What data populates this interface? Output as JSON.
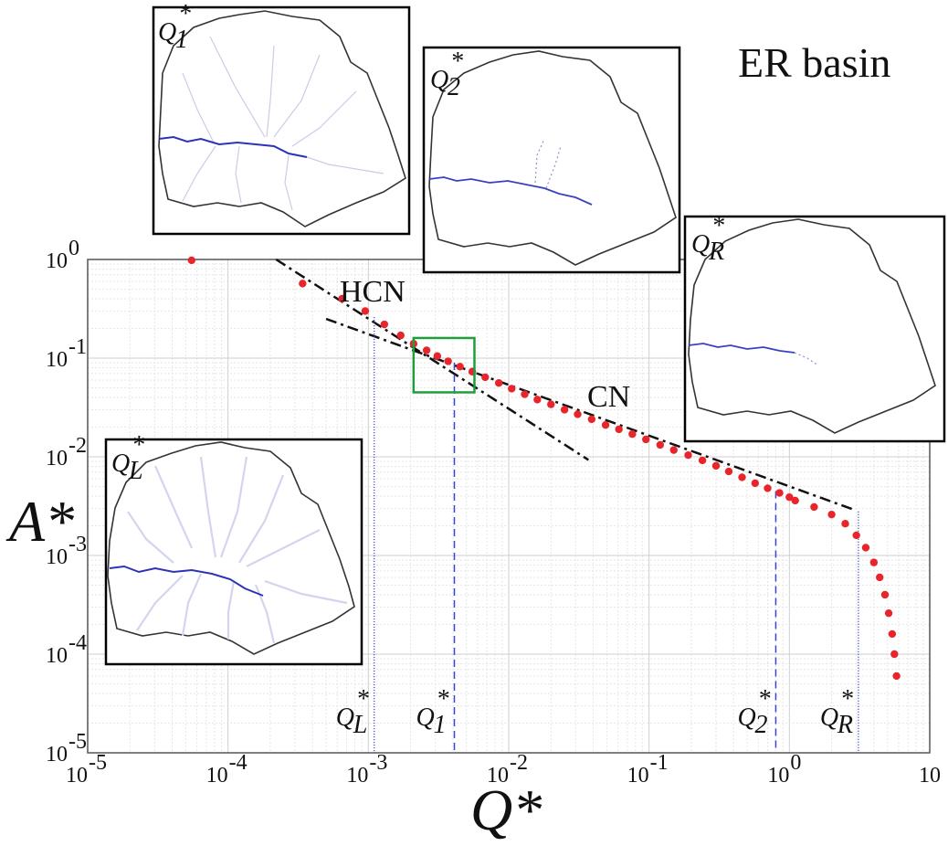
{
  "basin_label": "ER basin",
  "chart_data": {
    "type": "scatter",
    "title": "",
    "xlabel": "Q*",
    "ylabel": "A*",
    "xscale": "log",
    "yscale": "log",
    "xlim": [
      1e-05,
      10
    ],
    "ylim": [
      1e-05,
      1
    ],
    "grid": true,
    "x_tick_labels": [
      {
        "base": "10",
        "exp": "-5"
      },
      {
        "base": "10",
        "exp": "-4"
      },
      {
        "base": "10",
        "exp": "-3"
      },
      {
        "base": "10",
        "exp": "-2"
      },
      {
        "base": "10",
        "exp": "-1"
      },
      {
        "base": "10",
        "exp": "0"
      },
      {
        "base": "10",
        "exp": ""
      }
    ],
    "y_tick_labels": [
      {
        "base": "10",
        "exp": "0"
      },
      {
        "base": "10",
        "exp": "-1"
      },
      {
        "base": "10",
        "exp": "-2"
      },
      {
        "base": "10",
        "exp": "-3"
      },
      {
        "base": "10",
        "exp": "-4"
      },
      {
        "base": "10",
        "exp": "-5"
      }
    ],
    "marker_color": "#e8252b",
    "points": {
      "x": [
        5.5e-05,
        0.00034,
        0.00065,
        0.00095,
        0.0013,
        0.0017,
        0.0021,
        0.0026,
        0.0031,
        0.0037,
        0.0045,
        0.0055,
        0.0068,
        0.0085,
        0.0105,
        0.013,
        0.016,
        0.02,
        0.025,
        0.031,
        0.039,
        0.049,
        0.061,
        0.076,
        0.095,
        0.12,
        0.15,
        0.19,
        0.24,
        0.3,
        0.37,
        0.46,
        0.57,
        0.7,
        0.85,
        1.0,
        1.1,
        1.5,
        2.0,
        2.5,
        3.0,
        3.5,
        4.0,
        4.4,
        4.8,
        5.1,
        5.4,
        5.6,
        5.8
      ],
      "y": [
        0.98,
        0.57,
        0.4,
        0.3,
        0.22,
        0.17,
        0.14,
        0.12,
        0.105,
        0.093,
        0.082,
        0.073,
        0.064,
        0.056,
        0.049,
        0.043,
        0.038,
        0.034,
        0.03,
        0.027,
        0.024,
        0.021,
        0.019,
        0.017,
        0.015,
        0.0132,
        0.0117,
        0.0104,
        0.0092,
        0.0081,
        0.0071,
        0.0062,
        0.0054,
        0.0048,
        0.0043,
        0.0039,
        0.0036,
        0.0031,
        0.0026,
        0.0021,
        0.0016,
        0.0012,
        0.00085,
        0.0006,
        0.0004,
        0.00026,
        0.00016,
        0.0001,
        6e-05
      ]
    },
    "fit_lines": [
      {
        "name": "HCN",
        "x": [
          0.00022,
          0.037
        ],
        "y": [
          1.0,
          0.0093
        ]
      },
      {
        "name": "CN",
        "x": [
          0.0005,
          2.9
        ],
        "y": [
          0.25,
          0.0029
        ]
      }
    ],
    "thresholds": [
      {
        "label_base": "Q",
        "label_sub": "L",
        "label_sup": "*",
        "x": 0.0011,
        "y_top": 0.26,
        "dash": "1,2"
      },
      {
        "label_base": "Q",
        "label_sub": "1",
        "label_sup": "*",
        "x": 0.0041,
        "y_top": 0.09,
        "dash": "8,5"
      },
      {
        "label_base": "Q",
        "label_sub": "2",
        "label_sup": "*",
        "x": 0.8,
        "y_top": 0.0045,
        "dash": "8,5"
      },
      {
        "label_base": "Q",
        "label_sub": "R",
        "label_sup": "*",
        "x": 3.1,
        "y_top": 0.0028,
        "dash": "1,2"
      }
    ],
    "highlight_box": {
      "x": [
        0.0021,
        0.0057
      ],
      "y": [
        0.045,
        0.16
      ],
      "color": "#1e9e3c"
    },
    "inset_labels": [
      {
        "base": "Q",
        "sub": "1",
        "sup": "*"
      },
      {
        "base": "Q",
        "sub": "2",
        "sup": "*"
      },
      {
        "base": "Q",
        "sub": "R",
        "sup": "*"
      },
      {
        "base": "Q",
        "sub": "L",
        "sup": "*"
      }
    ]
  }
}
